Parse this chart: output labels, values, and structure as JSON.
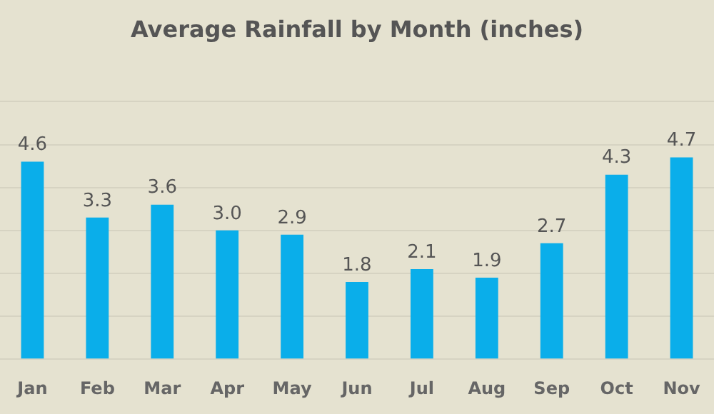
{
  "chart_data": {
    "type": "bar",
    "title": "Average Rainfall by Month (inches)",
    "categories": [
      "Jan",
      "Feb",
      "Mar",
      "Apr",
      "May",
      "Jun",
      "Jul",
      "Aug",
      "Sep",
      "Oct",
      "Nov"
    ],
    "values": [
      4.6,
      3.3,
      3.6,
      3.0,
      2.9,
      1.8,
      2.1,
      1.9,
      2.7,
      4.3,
      4.7
    ],
    "color": "#0aaeea",
    "ylim": [
      0,
      6
    ],
    "yticks": [
      {
        "value": 0,
        "label": null
      },
      {
        "value": 1,
        "label": null
      },
      {
        "value": 2,
        "label": null
      },
      {
        "value": 3,
        "label": null
      },
      {
        "value": 4,
        "label": null
      },
      {
        "value": 5,
        "label": null
      },
      {
        "value": 6,
        "label": null
      }
    ],
    "value_labels": [
      "4.6",
      "3.3",
      "3.6",
      "3.0",
      "2.9",
      "1.8",
      "2.1",
      "1.9",
      "2.7",
      "4.3",
      "4.7"
    ],
    "grid": "y",
    "tick_labels": "x"
  }
}
